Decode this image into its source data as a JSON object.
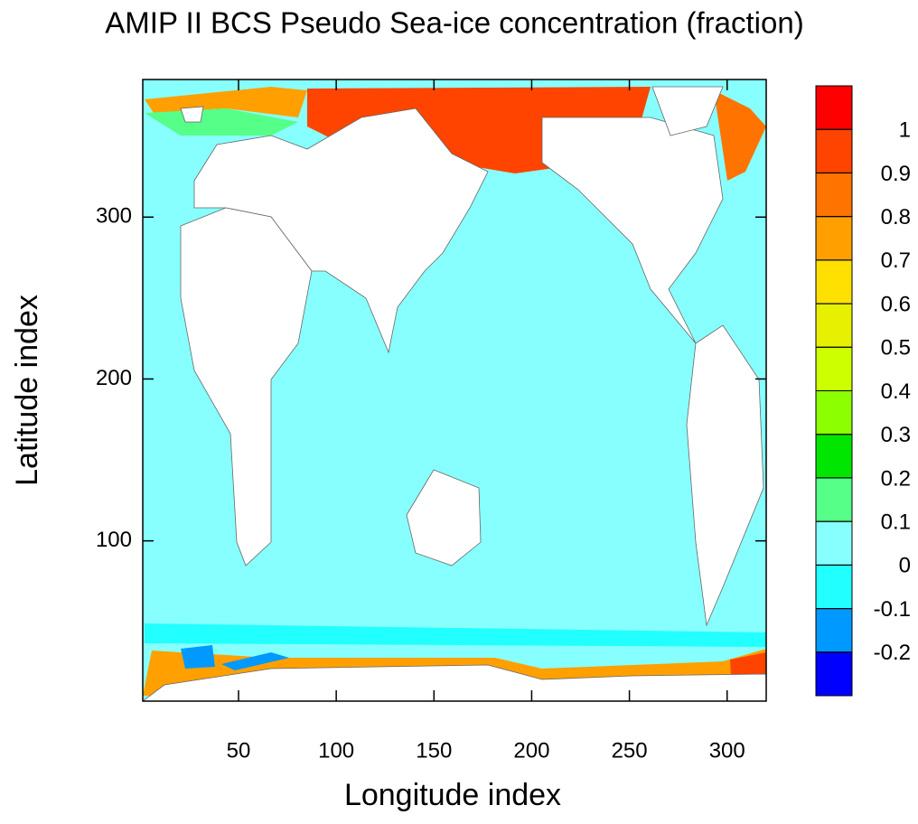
{
  "chart_data": {
    "type": "contour",
    "title": "AMIP II BCS Pseudo Sea-ice concentration (fraction)",
    "x_label": "Longitude index",
    "y_label": "Latitude index",
    "xlim": [
      1,
      320
    ],
    "ylim": [
      1,
      385
    ],
    "xticks": [
      50,
      100,
      150,
      200,
      250,
      300
    ],
    "yticks": [
      100,
      200,
      300
    ],
    "colorbar": {
      "levels": [
        -0.2,
        -0.1,
        0,
        0.1,
        0.2,
        0.3,
        0.4,
        0.5,
        0.6,
        0.7,
        0.8,
        0.9,
        1
      ],
      "colors": [
        "#0000ff",
        "#0099ff",
        "#22ffff",
        "#88ffff",
        "#55ff88",
        "#00e600",
        "#8cff00",
        "#ccff00",
        "#e6f000",
        "#ffe000",
        "#ffa000",
        "#ff7400",
        "#ff4400",
        "#ff0000"
      ]
    }
  }
}
